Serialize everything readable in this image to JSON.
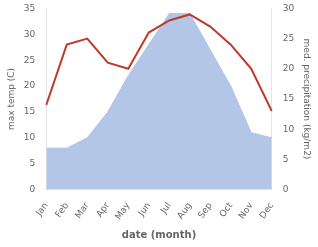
{
  "chart_data": {
    "type": "line",
    "categories": [
      "Jan",
      "Feb",
      "Mar",
      "Apr",
      "May",
      "Jun",
      "Jul",
      "Aug",
      "Sep",
      "Oct",
      "Nov",
      "Dec"
    ],
    "series": [
      {
        "type": "area",
        "color": "#b3c6e8",
        "values": [
          8,
          8,
          10,
          15,
          22,
          28,
          34,
          34,
          27,
          20,
          11,
          10
        ]
      },
      {
        "type": "line",
        "color": "#c0392b",
        "axis": "y2",
        "values": [
          14,
          24,
          25,
          21,
          20,
          26,
          28,
          29,
          27,
          24,
          20,
          13
        ]
      }
    ],
    "xlabel": "date (month)",
    "ylabel": "max temp (C)",
    "y2label": "med. precipitation (kg/m2)",
    "ylim": [
      0,
      35
    ],
    "yticks": [
      0,
      5,
      10,
      15,
      20,
      25,
      30,
      35
    ],
    "y2lim": [
      0,
      30
    ],
    "y2ticks": [
      0,
      5,
      10,
      15,
      20,
      25,
      30
    ],
    "grid": false
  }
}
